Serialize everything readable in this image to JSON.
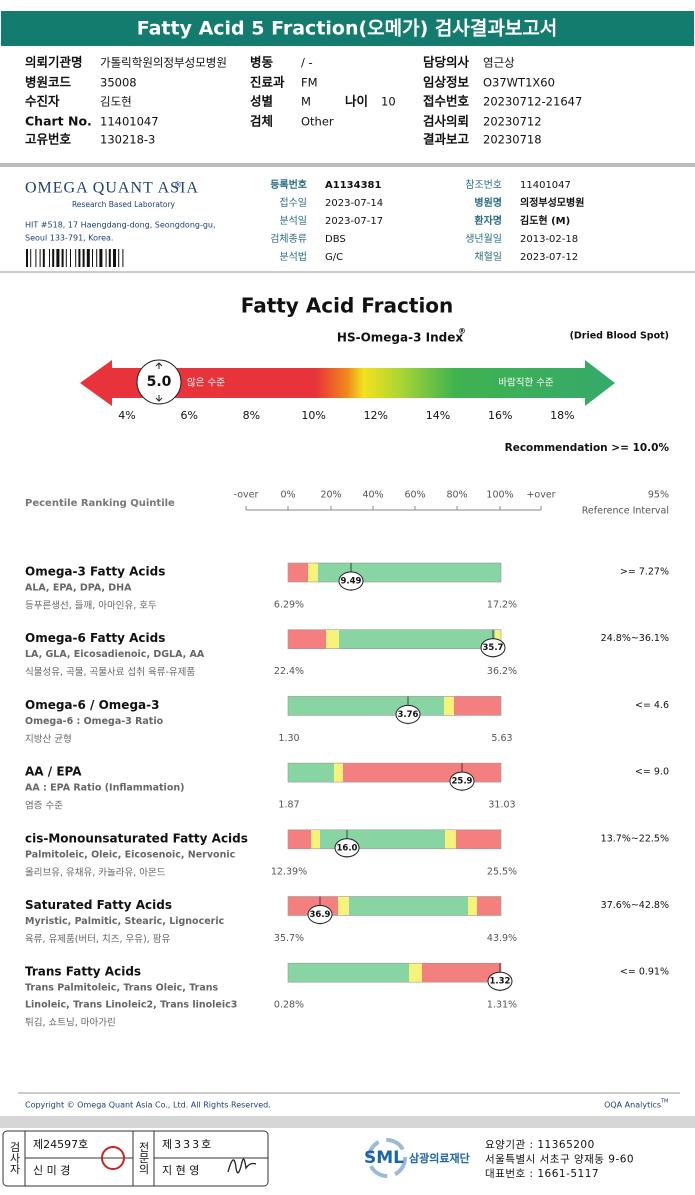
{
  "header": {
    "title": "Fatty Acid 5 Fraction(오메가) 검사결과보고서"
  },
  "patient": {
    "fields": [
      {
        "label": "의뢰기관명",
        "value": "가톨릭학원의정부성모병원"
      },
      {
        "label": "병동",
        "value": "/ -"
      },
      {
        "label": "담당의사",
        "value": "염근상"
      },
      {
        "label": "병원코드",
        "value": "35008"
      },
      {
        "label": "진료과",
        "value": "FM"
      },
      {
        "label": "임상정보",
        "value": "O37WT1X60"
      },
      {
        "label": "수진자",
        "value": "김도현"
      },
      {
        "label": "성별",
        "value": "M"
      },
      {
        "label": "나이",
        "value": "10"
      },
      {
        "label": "접수번호",
        "value": "20230712-21647"
      },
      {
        "label": "Chart No.",
        "value": "11401047"
      },
      {
        "label": "검체",
        "value": "Other"
      },
      {
        "label": "검사의뢰",
        "value": "20230712"
      },
      {
        "label": "고유번호",
        "value": "130218-3"
      },
      {
        "label": "결과보고",
        "value": "20230718"
      }
    ]
  },
  "lab": {
    "logo": "OMEGA QUANT ASIA",
    "logo_mark": "®",
    "tagline": "Research Based Laboratory",
    "address": [
      "HIT #518, 17 Haengdang-dong, Seongdong-gu,",
      "Seoul 133-791, Korea."
    ],
    "middle": [
      {
        "label": "등록번호",
        "value": "A1134381"
      },
      {
        "label": "접수일",
        "value": "2023-07-14"
      },
      {
        "label": "분석일",
        "value": "2023-07-17"
      },
      {
        "label": "검체종류",
        "value": "DBS"
      },
      {
        "label": "분석법",
        "value": "G/C"
      }
    ],
    "right": [
      {
        "label": "참조번호",
        "value": "11401047"
      },
      {
        "label": "병원명",
        "value": "의정부성모병원"
      },
      {
        "label": "환자명",
        "value": "김도현 (M)"
      },
      {
        "label": "생년월일",
        "value": "2013-02-18"
      },
      {
        "label": "채혈일",
        "value": "2023-07-12"
      }
    ]
  },
  "index": {
    "title": "Fatty Acid Fraction",
    "subtitle": "HS-Omega-3 Index",
    "subtitle_mark": "®",
    "sample": "(Dried Blood Spot)",
    "value": "5.0",
    "low_label": "않은 수준",
    "high_label": "바람직한 수준",
    "scale": [
      "4%",
      "6%",
      "8%",
      "10%",
      "12%",
      "14%",
      "16%",
      "18%"
    ],
    "recommendation": "Recommendation  >= 10.0%"
  },
  "ranking": {
    "title": "Pecentile Ranking Quintile",
    "scale": [
      "-over",
      "0%",
      "20%",
      "40%",
      "60%",
      "80%",
      "100%",
      "+over"
    ],
    "ref_title": [
      "95%",
      "Reference Interval"
    ]
  },
  "rows": [
    {
      "name": "Omega-3 Fatty Acids",
      "detail": [
        "ALA, EPA, DPA, DHA"
      ],
      "foods": "등푸른생선, 들깨, 아마인유, 호두",
      "value": "9.49",
      "min": "6.29%",
      "max": "17.2%",
      "reference": ">= 7.27%"
    },
    {
      "name": "Omega-6 Fatty Acids",
      "detail": [
        "LA, GLA, Eicosadienoic, DGLA, AA"
      ],
      "foods": "식물성유, 곡물, 곡물사료 섭취 육류-유제품",
      "value": "35.7",
      "min": "22.4%",
      "max": "36.2%",
      "reference": "24.8%~36.1%"
    },
    {
      "name": "Omega-6 / Omega-3",
      "detail": [
        "Omega-6 : Omega-3 Ratio"
      ],
      "foods": "지방산 균형",
      "value": "3.76",
      "min": "1.30",
      "max": "5.63",
      "reference": "<= 4.6"
    },
    {
      "name": "AA / EPA",
      "detail": [
        "AA : EPA Ratio (Inflammation)"
      ],
      "foods": "염증 수준",
      "value": "25.9",
      "min": "1.87",
      "max": "31.03",
      "reference": "<= 9.0"
    },
    {
      "name": "cis-Monounsaturated Fatty Acids",
      "detail": [
        "Palmitoleic, Oleic, Eicosenoic, Nervonic"
      ],
      "foods": "올리브유, 유채유, 카놀라유, 아몬드",
      "value": "16.0",
      "min": "12.39%",
      "max": "25.5%",
      "reference": "13.7%~22.5%"
    },
    {
      "name": "Saturated Fatty Acids",
      "detail": [
        "Myristic, Palmitic, Stearic, Lignoceric"
      ],
      "foods": "육류, 유제품(버터, 치즈, 우유), 팜유",
      "value": "36.9",
      "min": "35.7%",
      "max": "43.9%",
      "reference": "37.6%~42.8%"
    },
    {
      "name": "Trans Fatty Acids",
      "detail": [
        "Trans Palmitoleic, Trans Oleic, Trans",
        "Linoleic, Trans Linoleic2, Trans linoleic3"
      ],
      "foods": "튀김, 쇼트닝, 마아가린",
      "value": "1.32",
      "min": "0.28%",
      "max": "1.31%",
      "reference": "<= 0.91%"
    }
  ],
  "footer": {
    "copyright": "Copyright © Omega Quant Asia Co., Ltd.  All Rights Reserved.",
    "brand": "OQA Analytics",
    "brand_mark": "TM"
  },
  "signoff": {
    "tech_role": "검사자",
    "tech_no": "제24597호",
    "tech_name": "신 미 경",
    "doctor_role": "전문의",
    "doctor_no": "제333호",
    "doctor_name": "지 현 영",
    "org_short": "SML",
    "org_name": "삼광의료재단",
    "info": [
      "요양기관 : 11365200",
      "서울특별시 서초구 양재동 9-60",
      "대표번호 : 1661-5117"
    ]
  }
}
